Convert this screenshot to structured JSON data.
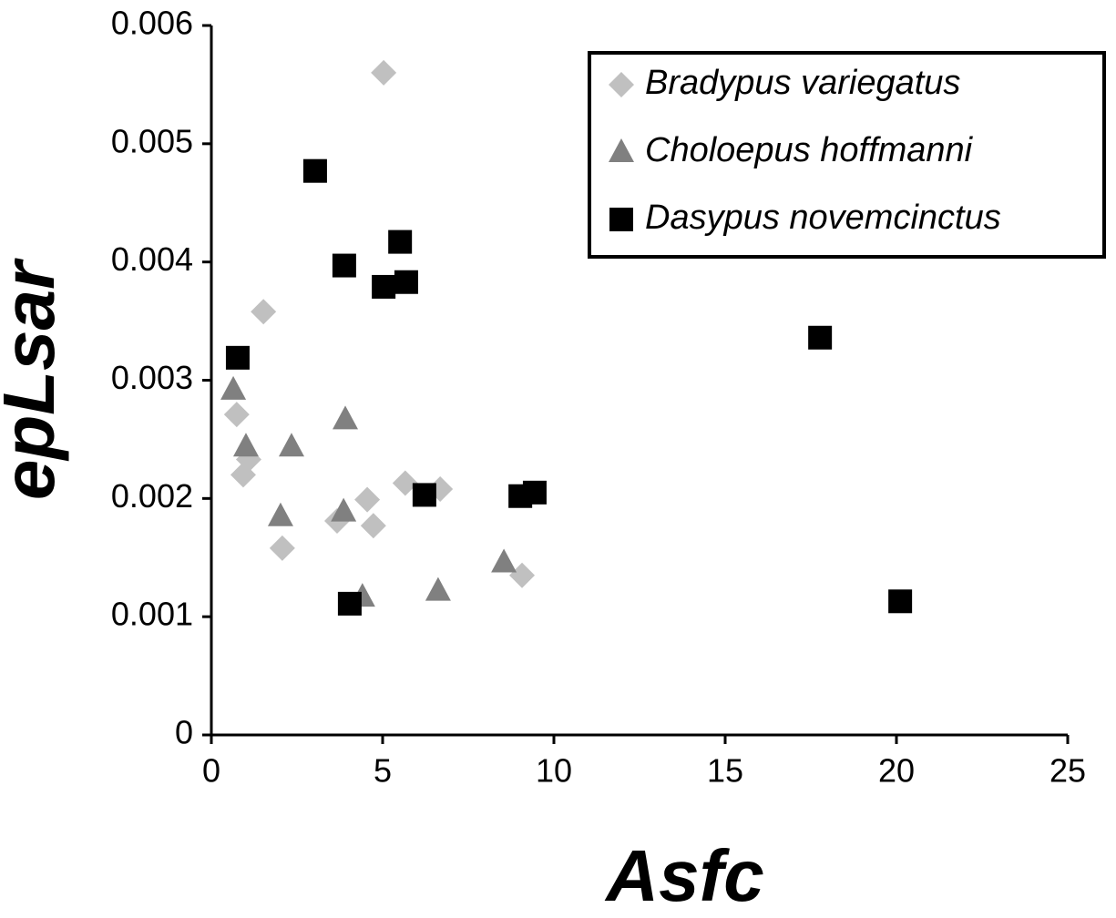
{
  "chart_data": {
    "type": "scatter",
    "x_label": "Asfc",
    "y_label": "epLsar",
    "xlim": [
      0,
      25
    ],
    "xticks": [
      0,
      5,
      10,
      15,
      20,
      25
    ],
    "ylim": [
      0,
      0.006
    ],
    "yticks": [
      0,
      0.001,
      0.002,
      0.003,
      0.004,
      0.005,
      0.006
    ],
    "legend": "top-right",
    "series": [
      {
        "name": "Bradypus variegatus",
        "color": "#c0c0c0",
        "marker": "diamond",
        "x": [
          5.03,
          1.52,
          0.74,
          1.09,
          0.93,
          2.07,
          3.67,
          4.55,
          4.73,
          5.66,
          6.68,
          9.07
        ],
        "values": [
          0.0056,
          0.00358,
          0.00271,
          0.00233,
          0.0022,
          0.00158,
          0.00181,
          0.00199,
          0.00177,
          0.00213,
          0.00208,
          0.00135
        ]
      },
      {
        "name": "Choloepus hoffmanni",
        "color": "#808080",
        "marker": "triangle",
        "x": [
          0.64,
          1.01,
          2.34,
          2.02,
          3.91,
          3.86,
          4.41,
          6.62,
          8.54
        ],
        "values": [
          0.00292,
          0.00244,
          0.00244,
          0.00185,
          0.00267,
          0.00189,
          0.00117,
          0.00122,
          0.00146
        ]
      },
      {
        "name": "Dasypus novemcinctus",
        "color": "#000000",
        "marker": "square",
        "x": [
          3.03,
          3.88,
          5.51,
          5.03,
          5.69,
          0.77,
          17.77,
          6.22,
          9.02,
          9.44,
          4.04,
          20.11
        ],
        "values": [
          0.00477,
          0.00397,
          0.00417,
          0.00379,
          0.00383,
          0.00319,
          0.00336,
          0.00203,
          0.00202,
          0.00205,
          0.00111,
          0.00113
        ]
      }
    ]
  }
}
